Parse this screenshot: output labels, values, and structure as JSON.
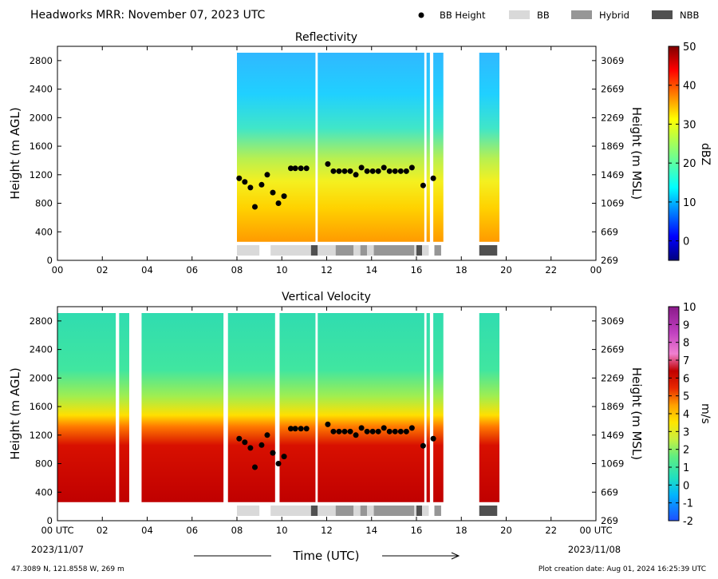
{
  "header": {
    "title": "Headworks MRR:  November 07, 2023 UTC",
    "legend": [
      {
        "label": "BB Height",
        "kind": "dot",
        "color": "#000000"
      },
      {
        "label": "BB",
        "kind": "box",
        "color": "#d9d9d9"
      },
      {
        "label": "Hybrid",
        "kind": "box",
        "color": "#969696"
      },
      {
        "label": "NBB",
        "kind": "box",
        "color": "#505050"
      }
    ]
  },
  "footer": {
    "location": "47.3089 N, 121.8558 W, 269 m",
    "creation": "Plot creation date: Aug 01, 2024 16:25:39 UTC",
    "time_axis_label": "Time (UTC)",
    "start_date": "2023/11/07",
    "end_date": "2023/11/08"
  },
  "chart_data": [
    {
      "type": "heatmap",
      "title": "Reflectivity",
      "xlabel": "",
      "ylabel": "Height (m AGL)",
      "ylabel_right": "Height (m MSL)",
      "xlim": [
        0,
        24
      ],
      "ylim": [
        0,
        3000
      ],
      "x_ticks": [
        "00",
        "02",
        "04",
        "06",
        "08",
        "10",
        "12",
        "14",
        "16",
        "18",
        "20",
        "22",
        "00"
      ],
      "y_ticks": [
        0,
        400,
        800,
        1200,
        1600,
        2000,
        2400,
        2800
      ],
      "y_ticks_right": [
        269,
        669,
        1069,
        1469,
        1869,
        2269,
        2669,
        3069
      ],
      "colorbar": {
        "label": "dBZ",
        "min": -5,
        "max": 50,
        "ticks": [
          0,
          10,
          20,
          30,
          40,
          50
        ],
        "colormap": "jet"
      },
      "data_spans_hours": [
        [
          8.0,
          11.5
        ],
        [
          11.6,
          16.35
        ],
        [
          16.45,
          16.6
        ],
        [
          16.75,
          17.2
        ],
        [
          18.8,
          19.7
        ]
      ],
      "bright_band_heights": [
        {
          "t": 8.1,
          "h": 1150
        },
        {
          "t": 8.35,
          "h": 1100
        },
        {
          "t": 8.6,
          "h": 1020
        },
        {
          "t": 8.8,
          "h": 750
        },
        {
          "t": 9.1,
          "h": 1060
        },
        {
          "t": 9.35,
          "h": 1200
        },
        {
          "t": 9.6,
          "h": 950
        },
        {
          "t": 9.85,
          "h": 800
        },
        {
          "t": 10.1,
          "h": 900
        },
        {
          "t": 10.4,
          "h": 1290
        },
        {
          "t": 10.6,
          "h": 1290
        },
        {
          "t": 10.85,
          "h": 1290
        },
        {
          "t": 11.1,
          "h": 1290
        },
        {
          "t": 12.05,
          "h": 1350
        },
        {
          "t": 12.3,
          "h": 1250
        },
        {
          "t": 12.55,
          "h": 1250
        },
        {
          "t": 12.8,
          "h": 1250
        },
        {
          "t": 13.05,
          "h": 1250
        },
        {
          "t": 13.3,
          "h": 1200
        },
        {
          "t": 13.55,
          "h": 1300
        },
        {
          "t": 13.8,
          "h": 1250
        },
        {
          "t": 14.05,
          "h": 1250
        },
        {
          "t": 14.3,
          "h": 1250
        },
        {
          "t": 14.55,
          "h": 1300
        },
        {
          "t": 14.8,
          "h": 1250
        },
        {
          "t": 15.05,
          "h": 1250
        },
        {
          "t": 15.3,
          "h": 1250
        },
        {
          "t": 15.55,
          "h": 1250
        },
        {
          "t": 15.8,
          "h": 1300
        },
        {
          "t": 16.3,
          "h": 1050
        },
        {
          "t": 16.75,
          "h": 1150
        }
      ],
      "bb_type_bars": [
        {
          "start": 8.0,
          "end": 9.0,
          "type": "BB"
        },
        {
          "start": 9.5,
          "end": 11.3,
          "type": "BB"
        },
        {
          "start": 11.3,
          "end": 11.6,
          "type": "NBB"
        },
        {
          "start": 11.6,
          "end": 12.4,
          "type": "BB"
        },
        {
          "start": 12.4,
          "end": 13.2,
          "type": "Hybrid"
        },
        {
          "start": 13.2,
          "end": 13.5,
          "type": "BB"
        },
        {
          "start": 13.5,
          "end": 13.8,
          "type": "Hybrid"
        },
        {
          "start": 13.8,
          "end": 14.1,
          "type": "BB"
        },
        {
          "start": 14.1,
          "end": 15.9,
          "type": "Hybrid"
        },
        {
          "start": 15.9,
          "end": 16.0,
          "type": "BB"
        },
        {
          "start": 16.0,
          "end": 16.25,
          "type": "NBB"
        },
        {
          "start": 16.25,
          "end": 16.55,
          "type": "BB"
        },
        {
          "start": 16.8,
          "end": 17.1,
          "type": "Hybrid"
        },
        {
          "start": 18.8,
          "end": 19.6,
          "type": "NBB"
        }
      ]
    },
    {
      "type": "heatmap",
      "title": "Vertical Velocity",
      "xlabel": "Time (UTC)",
      "ylabel": "Height (m AGL)",
      "ylabel_right": "Height (m MSL)",
      "xlim": [
        0,
        24
      ],
      "ylim": [
        0,
        3000
      ],
      "x_ticks": [
        "00 UTC",
        "02",
        "04",
        "06",
        "08",
        "10",
        "12",
        "14",
        "16",
        "18",
        "20",
        "22",
        "00 UTC"
      ],
      "y_ticks": [
        0,
        400,
        800,
        1200,
        1600,
        2000,
        2400,
        2800
      ],
      "y_ticks_right": [
        269,
        669,
        1069,
        1469,
        1869,
        2269,
        2669,
        3069
      ],
      "colorbar": {
        "label": "m/s",
        "min": -2,
        "max": 10,
        "ticks": [
          -2,
          -1,
          0,
          1,
          2,
          3,
          4,
          5,
          6,
          7,
          8,
          9,
          10
        ],
        "colormap": "velocity"
      },
      "data_spans_hours": [
        [
          0.0,
          2.6
        ],
        [
          2.75,
          3.2
        ],
        [
          3.75,
          7.4
        ],
        [
          7.6,
          9.7
        ],
        [
          9.9,
          11.5
        ],
        [
          11.6,
          16.35
        ],
        [
          16.45,
          16.6
        ],
        [
          16.75,
          17.2
        ],
        [
          18.8,
          19.7
        ]
      ]
    }
  ]
}
